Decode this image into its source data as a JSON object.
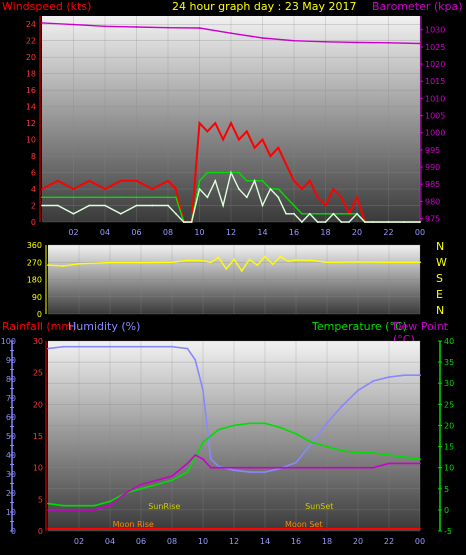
{
  "header": {
    "windspeed_label": "Windspeed (kts)",
    "title": "24 hour graph day : 23 May 2017",
    "barometer_label": "Barometer (kpa)"
  },
  "middle": {
    "compass_letters": [
      "N",
      "W",
      "S",
      "E",
      "N"
    ]
  },
  "bottom_header": {
    "rainfall_label": "Rainfall (mm)",
    "humidity_label": "Humidity (%)",
    "temperature_label": "Temperature (°C)",
    "dewpoint_label": "Dew Point (°C)"
  },
  "colors": {
    "windspeed_gust": "#ff0000",
    "windspeed_avg": "#00dd00",
    "windspeed_speed": "#ddffdd",
    "barometer": "#cc00cc",
    "direction": "#ffff00",
    "humidity": "#8888ff",
    "temperature": "#00dd00",
    "dewpoint": "#cc00cc",
    "rainfall": "#ff0000",
    "sun_moon": "#cccc00",
    "title": "#ffff00"
  },
  "chart_data": [
    {
      "type": "line",
      "title": "24 hour graph day : 23 May 2017",
      "x_ticks": [
        "02",
        "04",
        "06",
        "08",
        "10",
        "12",
        "14",
        "16",
        "18",
        "20",
        "22",
        "00"
      ],
      "xlim": [
        0,
        24
      ],
      "left_axis": {
        "label": "Windspeed (kts)",
        "ticks": [
          "0",
          "2",
          "4",
          "6",
          "8",
          "10",
          "12",
          "14",
          "16",
          "18",
          "20",
          "22",
          "24"
        ],
        "ylim": [
          0,
          25
        ]
      },
      "right_axis": {
        "label": "Barometer (kpa)",
        "ticks": [
          "975",
          "980",
          "985",
          "990",
          "995",
          "1000",
          "1005",
          "1010",
          "1015",
          "1020",
          "1025",
          "1030"
        ],
        "ylim": [
          974,
          1034
        ]
      },
      "series": [
        {
          "key": "gust",
          "axis": "left",
          "x": [
            0,
            1,
            2,
            3,
            4,
            5,
            6,
            7,
            8,
            8.5,
            9,
            9.5,
            10,
            10.5,
            11,
            11.5,
            12,
            12.5,
            13,
            13.5,
            14,
            14.5,
            15,
            15.5,
            16,
            16.5,
            17,
            17.5,
            18,
            18.5,
            19,
            19.5,
            20,
            20.5,
            21,
            22,
            23,
            24
          ],
          "y": [
            4,
            5,
            4,
            5,
            4,
            5,
            5,
            4,
            5,
            4,
            0,
            0,
            12,
            11,
            12,
            10,
            12,
            10,
            11,
            9,
            10,
            8,
            9,
            7,
            5,
            4,
            5,
            3,
            2,
            4,
            3,
            1,
            3,
            0,
            0,
            0,
            0,
            0
          ]
        },
        {
          "key": "avg",
          "axis": "left",
          "x": [
            0,
            1,
            2,
            3,
            4,
            5,
            6,
            7,
            8,
            8.5,
            9,
            9.5,
            10,
            10.5,
            11,
            11.5,
            12,
            12.5,
            13,
            13.5,
            14,
            14.5,
            15,
            15.5,
            16,
            16.5,
            17,
            17.5,
            18,
            18.5,
            19,
            19.5,
            20,
            20.5,
            21,
            22,
            23,
            24
          ],
          "y": [
            3,
            3,
            3,
            3,
            3,
            3,
            3,
            3,
            3,
            3,
            0,
            0,
            5,
            6,
            6,
            6,
            6,
            6,
            5,
            5,
            5,
            4,
            4,
            3,
            2,
            1,
            1,
            1,
            1,
            1,
            1,
            1,
            1,
            0,
            0,
            0,
            0,
            0
          ]
        },
        {
          "key": "speed",
          "axis": "left",
          "x": [
            0,
            1,
            2,
            3,
            4,
            5,
            6,
            7,
            8,
            8.5,
            9,
            9.5,
            10,
            10.5,
            11,
            11.5,
            12,
            12.5,
            13,
            13.5,
            14,
            14.5,
            15,
            15.5,
            16,
            16.5,
            17,
            17.5,
            18,
            18.5,
            19,
            19.5,
            20,
            20.5,
            21,
            22,
            23,
            24
          ],
          "y": [
            2,
            2,
            1,
            2,
            2,
            1,
            2,
            2,
            2,
            1,
            0,
            0,
            4,
            3,
            5,
            2,
            6,
            4,
            3,
            5,
            2,
            4,
            3,
            1,
            1,
            0,
            1,
            0,
            0,
            1,
            0,
            0,
            1,
            0,
            0,
            0,
            0,
            0
          ]
        },
        {
          "key": "barometer",
          "axis": "right",
          "x": [
            0,
            2,
            4,
            6,
            8,
            10,
            12,
            14,
            16,
            18,
            20,
            22,
            24
          ],
          "y": [
            1032,
            1031.5,
            1031,
            1030.8,
            1030.6,
            1030.5,
            1029,
            1027.6,
            1026.8,
            1026.5,
            1026.3,
            1026.2,
            1026
          ]
        }
      ]
    },
    {
      "type": "line",
      "title": "",
      "xlim": [
        0,
        24
      ],
      "left_axis": {
        "label": "",
        "ticks": [
          "0",
          "90",
          "180",
          "270",
          "360"
        ],
        "ylim": [
          0,
          360
        ]
      },
      "series": [
        {
          "key": "direction",
          "x": [
            0,
            1,
            2,
            4,
            6,
            8,
            9,
            10,
            10.5,
            11,
            11.5,
            12,
            12.5,
            13,
            13.5,
            14,
            14.5,
            15,
            15.5,
            16,
            17,
            18,
            20,
            22,
            24
          ],
          "y": [
            255,
            250,
            262,
            268,
            268,
            270,
            280,
            278,
            270,
            295,
            235,
            285,
            225,
            285,
            255,
            300,
            260,
            300,
            275,
            282,
            280,
            270,
            272,
            270,
            270
          ]
        }
      ]
    },
    {
      "type": "line",
      "title": "",
      "xlim": [
        0,
        24
      ],
      "left_axis": {
        "label": "Rainfall (mm)  Humidity (%)",
        "ticks": [
          "0",
          "5",
          "10",
          "15",
          "20",
          "25",
          "30",
          "35",
          "40",
          "45",
          "50",
          "55",
          "60",
          "65",
          "70",
          "75",
          "80",
          "85",
          "90",
          "95",
          "100"
        ],
        "ylim": [
          0,
          100
        ]
      },
      "inner_left_axis": {
        "ticks": [
          "0",
          "5",
          "10",
          "15",
          "20",
          "25",
          "30"
        ],
        "ylim": [
          0,
          30
        ]
      },
      "right_axis": {
        "label": "Temperature (°C)Dew Point (°C)",
        "ticks": [
          "-5",
          "0",
          "5",
          "10",
          "15",
          "20",
          "25",
          "30",
          "35",
          "40"
        ],
        "ylim": [
          -5,
          40
        ]
      },
      "series": [
        {
          "key": "humidity",
          "axis": "left",
          "x": [
            0,
            1,
            2,
            4,
            6,
            8,
            9,
            9.5,
            10,
            10.5,
            11,
            12,
            13,
            14,
            15,
            16,
            17,
            18,
            19,
            20,
            21,
            22,
            23,
            24
          ],
          "y": [
            96,
            97,
            97,
            97,
            97,
            97,
            96,
            90,
            74,
            38,
            34,
            32,
            31,
            31,
            33,
            36,
            46,
            57,
            66,
            74,
            79,
            81,
            82,
            82
          ]
        },
        {
          "key": "temperature",
          "axis": "right",
          "x": [
            0,
            1,
            2,
            3,
            4,
            5,
            6,
            7,
            8,
            9,
            10,
            11,
            12,
            13,
            14,
            15,
            16,
            17,
            18,
            19,
            20,
            21,
            22,
            23,
            24
          ],
          "y": [
            1.5,
            1,
            1,
            1,
            2,
            4,
            5,
            6,
            7,
            9,
            16,
            19,
            20,
            20.5,
            20.5,
            19.5,
            18,
            16,
            15,
            14,
            13.5,
            13.5,
            13,
            12.5,
            12
          ]
        },
        {
          "key": "dewpoint",
          "axis": "right",
          "x": [
            0,
            1,
            2,
            3,
            4,
            5,
            6,
            7,
            8,
            9,
            9.5,
            10,
            10.5,
            11,
            12,
            13,
            14,
            15,
            16,
            17,
            18,
            19,
            20,
            21,
            22,
            23,
            24
          ],
          "y": [
            0,
            0,
            0,
            0,
            1,
            4,
            6,
            7,
            8,
            11,
            13,
            12,
            10,
            10,
            10,
            10,
            10,
            10,
            10,
            10,
            10,
            10,
            10,
            10,
            11,
            11,
            11
          ]
        },
        {
          "key": "rainfall",
          "axis": "left",
          "x": [
            0,
            24
          ],
          "y": [
            0,
            0
          ]
        }
      ],
      "events": [
        {
          "label": "SunRise",
          "x": 7.5,
          "row": "upper"
        },
        {
          "label": "SunSet",
          "x": 17.5,
          "row": "upper"
        },
        {
          "label": "Moon Rise",
          "x": 5.5,
          "row": "lower"
        },
        {
          "label": "Moon Set",
          "x": 16.5,
          "row": "lower"
        }
      ]
    }
  ]
}
